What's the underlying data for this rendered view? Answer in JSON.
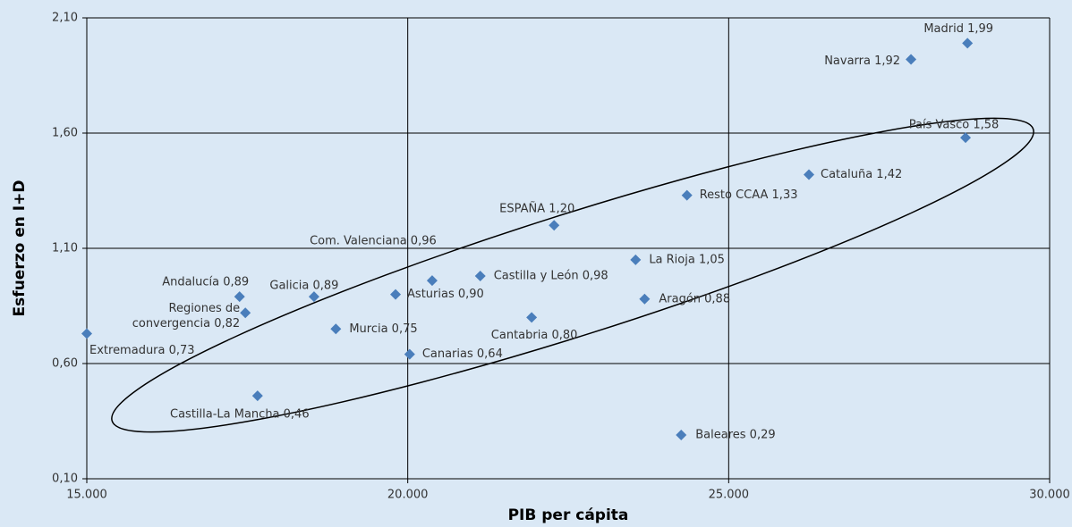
{
  "chart_data": {
    "type": "scatter",
    "x_label": "PIB per cápita",
    "y_label": "Esfuerzo en I+D",
    "color": "#4a7ebb",
    "grid": true,
    "labels": [
      "Madrid 1,99",
      "Navarra 1,92",
      "País Vasco 1,58",
      "Cataluña 1,42",
      "Resto CCAA 1,33",
      "ESPAÑA 1,20",
      "La Rioja 1,05",
      "Castilla y León 0,98",
      "Com. Valenciana 0,96",
      "Asturias 0,90",
      "Aragón 0,88",
      "Galicia 0,89",
      "Andalucía 0,89",
      "Regiones de\nconvergencia 0,82",
      "Cantabria 0,80",
      "Murcia 0,75",
      "Extremadura 0,73",
      "Canarias 0,64",
      "Castilla-La Mancha 0,46",
      "Baleares 0,29"
    ],
    "x": [
      28720,
      27840,
      28690,
      26250,
      24350,
      22280,
      23550,
      21130,
      20380,
      19810,
      23690,
      18540,
      17380,
      17470,
      21930,
      18880,
      15000,
      20030,
      17660,
      24260
    ],
    "values": [
      1.99,
      1.92,
      1.58,
      1.42,
      1.33,
      1.2,
      1.05,
      0.98,
      0.96,
      0.9,
      0.88,
      0.89,
      0.89,
      0.82,
      0.8,
      0.75,
      0.73,
      0.64,
      0.46,
      0.29
    ],
    "xlim": [
      15000,
      30000
    ],
    "xticks": [
      {
        "value": 15000,
        "label": "15.000"
      },
      {
        "value": 20000,
        "label": "20.000"
      },
      {
        "value": 25000,
        "label": "25.000"
      },
      {
        "value": 30000,
        "label": "30.000"
      }
    ],
    "ylim": [
      0.1,
      2.1
    ],
    "yticks": [
      {
        "value": 0.1,
        "label": "0,10"
      },
      {
        "value": 0.6,
        "label": "0,60"
      },
      {
        "value": 1.1,
        "label": "1,10"
      },
      {
        "value": 1.6,
        "label": "1,60"
      },
      {
        "value": 2.1,
        "label": "2,10"
      }
    ]
  }
}
